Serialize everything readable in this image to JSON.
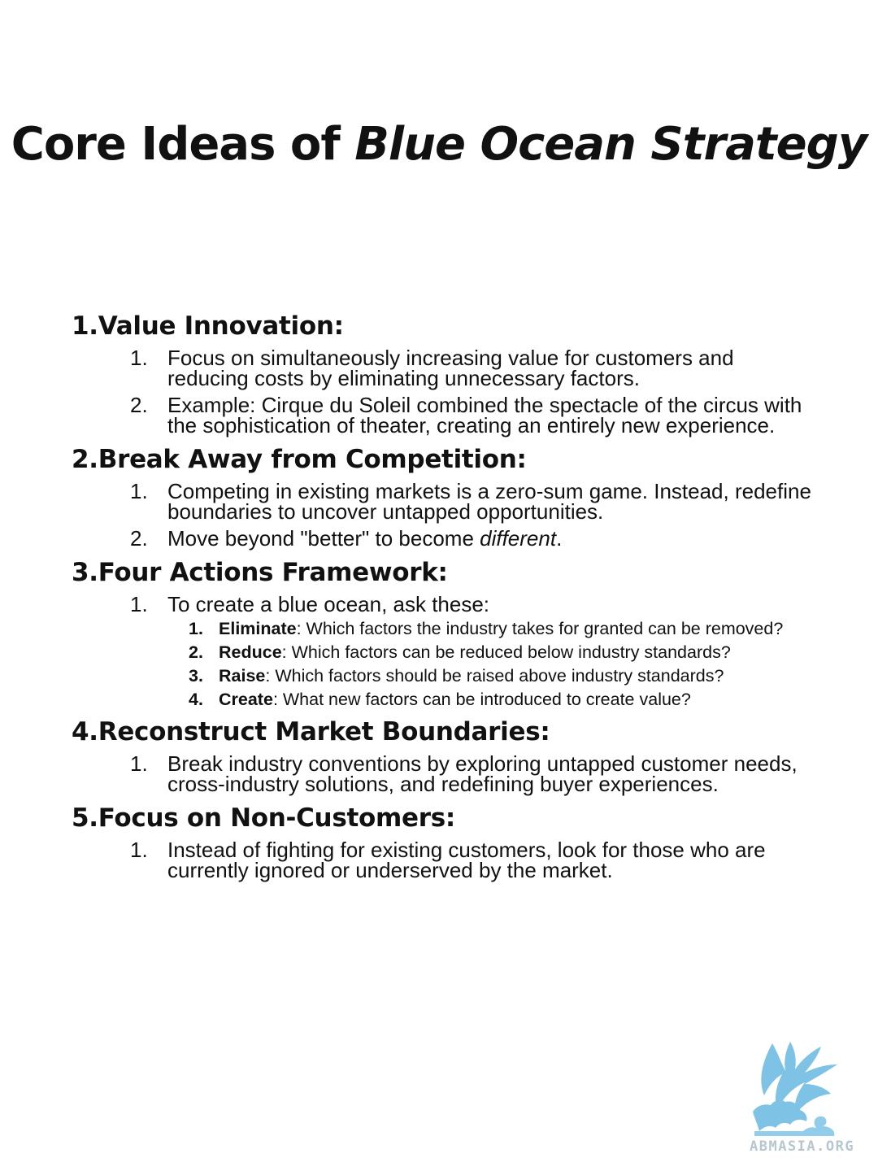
{
  "title": {
    "plain": "Core Ideas of ",
    "italic": "Blue Ocean Strategy"
  },
  "sections": [
    {
      "number": "1.",
      "name": "Value Innovation",
      "suffix": ":",
      "items": [
        {
          "marker": "1.",
          "text": "Focus on simultaneously increasing value for customers and reducing costs by eliminating unnecessary factors."
        },
        {
          "marker": "2.",
          "text": "Example: Cirque du Soleil combined the spectacle of the circus with the sophistication of theater, creating an entirely new experience."
        }
      ]
    },
    {
      "number": "2.",
      "name": "Break Away from Competition",
      "suffix": ":",
      "items": [
        {
          "marker": "1.",
          "text": "Competing in existing markets is a zero-sum game. Instead, redefine boundaries to uncover untapped opportunities."
        },
        {
          "marker": "2.",
          "text_before": "Move beyond \"better\" to become ",
          "text_italic": "different",
          "text_after": "."
        }
      ]
    },
    {
      "number": "3.",
      "name": "Four Actions Framework",
      "suffix": ":",
      "items": [
        {
          "marker": "1.",
          "text": "To create a blue ocean, ask these:",
          "sub_items": [
            {
              "marker": "1.",
              "term": "Eliminate",
              "text": ": Which factors the industry takes for granted can be removed?"
            },
            {
              "marker": "2.",
              "term": "Reduce",
              "text": ": Which factors can be reduced below industry standards?"
            },
            {
              "marker": "3.",
              "term": "Raise",
              "text": ": Which factors should be raised above industry standards?"
            },
            {
              "marker": "4.",
              "term": "Create",
              "text": ": What new factors can be introduced to create value?"
            }
          ]
        }
      ]
    },
    {
      "number": "4.",
      "name": "Reconstruct Market Boundaries",
      "suffix": ":",
      "items": [
        {
          "marker": "1.",
          "text": "Break industry conventions by exploring untapped customer needs, cross-industry solutions, and redefining buyer experiences."
        }
      ]
    },
    {
      "number": "5.",
      "name": "Focus on Non-Customers",
      "suffix": ":",
      "items": [
        {
          "marker": "1.",
          "text": "Instead of fighting for existing customers, look for those who are currently ignored or underserved by the market."
        }
      ]
    }
  ],
  "logo": {
    "icon": "griffin-logo-icon",
    "text": "ABMASIA.ORG",
    "color": "#7ec3e6",
    "text_color": "#b7c6cf"
  }
}
